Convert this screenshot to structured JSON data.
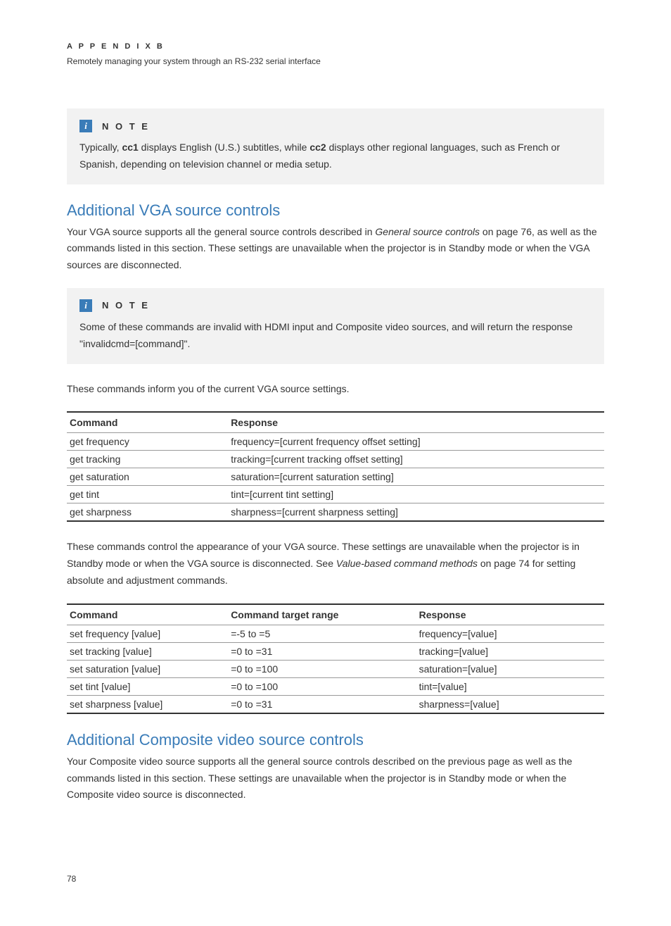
{
  "header": {
    "appendix": "A P P E N D I X   B",
    "subtitle": "Remotely managing your system through an RS-232 serial interface"
  },
  "note1": {
    "label": "N O T E",
    "body_pre": "Typically, ",
    "body_bold1": "cc1",
    "body_mid": " displays English (U.S.) subtitles, while ",
    "body_bold2": "cc2",
    "body_post": " displays other regional languages, such as French or Spanish, depending on television channel or media setup."
  },
  "section1": {
    "heading": "Additional VGA source controls",
    "intro_pre": "Your VGA source supports all the general source controls described in ",
    "intro_italic": "General source controls",
    "intro_post": " on page 76, as well as the commands listed in this section. These settings are unavailable when the projector is in Standby mode or when the VGA sources are disconnected."
  },
  "note2": {
    "label": "N O T E",
    "body": "Some of these commands are invalid with HDMI input and Composite video sources, and will return the response \"invalidcmd=[command]\"."
  },
  "table1": {
    "intro": "These commands inform you of the current VGA source settings.",
    "headers": {
      "col1": "Command",
      "col2": "Response"
    },
    "rows": [
      {
        "c1": "get frequency",
        "c2": "frequency=[current frequency offset setting]"
      },
      {
        "c1": "get tracking",
        "c2": "tracking=[current tracking offset setting]"
      },
      {
        "c1": "get saturation",
        "c2": "saturation=[current saturation setting]"
      },
      {
        "c1": "get tint",
        "c2": "tint=[current tint setting]"
      },
      {
        "c1": "get sharpness",
        "c2": "sharpness=[current sharpness setting]"
      }
    ]
  },
  "table2": {
    "intro_pre": "These commands control the appearance of your VGA source. These settings are unavailable when the projector is in Standby mode or when the VGA source is disconnected. See ",
    "intro_italic": "Value-based command methods",
    "intro_post": " on page 74 for setting absolute and adjustment commands.",
    "headers": {
      "col1": "Command",
      "col2": "Command target range",
      "col3": "Response"
    },
    "rows": [
      {
        "c1": "set frequency [value]",
        "c2": "=-5 to =5",
        "c3": "frequency=[value]"
      },
      {
        "c1": "set tracking [value]",
        "c2": "=0 to =31",
        "c3": "tracking=[value]"
      },
      {
        "c1": "set saturation [value]",
        "c2": "=0 to =100",
        "c3": "saturation=[value]"
      },
      {
        "c1": "set tint [value]",
        "c2": "=0 to =100",
        "c3": "tint=[value]"
      },
      {
        "c1": "set sharpness [value]",
        "c2": "=0 to =31",
        "c3": "sharpness=[value]"
      }
    ]
  },
  "section2": {
    "heading": "Additional Composite video source controls",
    "body": "Your Composite video source supports all the general source controls described on the previous page as well as the commands listed in this section. These settings are unavailable when the projector is in Standby mode or when the Composite video source is disconnected."
  },
  "pageNumber": "78"
}
